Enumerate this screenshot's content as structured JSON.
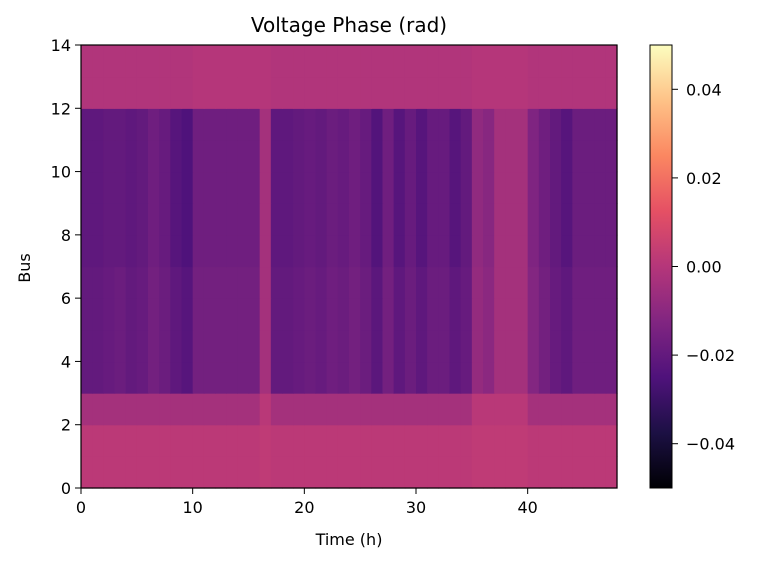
{
  "chart_data": {
    "type": "heatmap",
    "title": "Voltage Phase (rad)",
    "xlabel": "Time (h)",
    "ylabel": "Bus",
    "xlim": [
      0,
      48
    ],
    "ylim": [
      0,
      14
    ],
    "x_ticks": [
      "0",
      "10",
      "20",
      "30",
      "40"
    ],
    "y_ticks": [
      "0",
      "2",
      "4",
      "6",
      "8",
      "10",
      "12",
      "14"
    ],
    "colormap": "magma",
    "colorbar": {
      "vmin": -0.05,
      "vmax": 0.05,
      "ticks": [
        "−0.04",
        "−0.02",
        "0.00",
        "0.02",
        "0.04"
      ]
    },
    "buses": [
      0,
      1,
      2,
      3,
      4,
      5,
      6,
      7,
      8,
      9,
      10,
      11,
      12,
      13
    ],
    "hours": [
      0,
      1,
      2,
      3,
      4,
      5,
      6,
      7,
      8,
      9,
      10,
      11,
      12,
      13,
      14,
      15,
      16,
      17,
      18,
      19,
      20,
      21,
      22,
      23,
      24,
      25,
      26,
      27,
      28,
      29,
      30,
      31,
      32,
      33,
      34,
      35,
      36,
      37,
      38,
      39,
      40,
      41,
      42,
      43,
      44,
      45,
      46,
      47
    ],
    "values": [
      [
        0.0015,
        0.0015,
        0.0015,
        0.0015,
        0.0015,
        0.0015,
        0.0015,
        0.0015,
        0.0015,
        0.0015,
        0.0015,
        0.0015,
        0.0015,
        0.0015,
        0.0015,
        0.0015,
        0.0025,
        0.0015,
        0.0015,
        0.0015,
        0.0015,
        0.0015,
        0.0015,
        0.0015,
        0.0015,
        0.0015,
        0.0015,
        0.0015,
        0.0015,
        0.0015,
        0.0015,
        0.0015,
        0.0015,
        0.0015,
        0.0015,
        0.0025,
        0.0025,
        0.0025,
        0.0025,
        0.0025,
        0.0015,
        0.0015,
        0.0015,
        0.0015,
        0.0015,
        0.0015,
        0.0015,
        0.0015
      ],
      [
        0.0015,
        0.0015,
        0.0015,
        0.0015,
        0.0015,
        0.0015,
        0.0015,
        0.0015,
        0.0015,
        0.0015,
        0.0015,
        0.0015,
        0.0015,
        0.0015,
        0.0015,
        0.0015,
        0.0025,
        0.0015,
        0.0015,
        0.0015,
        0.0015,
        0.0015,
        0.0015,
        0.0015,
        0.0015,
        0.0015,
        0.0015,
        0.0015,
        0.0015,
        0.0015,
        0.0015,
        0.0015,
        0.0015,
        0.0015,
        0.0015,
        0.0025,
        0.0025,
        0.0025,
        0.0025,
        0.0025,
        0.0015,
        0.0015,
        0.0015,
        0.0015,
        0.0015,
        0.0015,
        0.0015,
        0.0015
      ],
      [
        -0.004,
        -0.004,
        -0.004,
        -0.004,
        -0.004,
        -0.004,
        -0.004,
        -0.004,
        -0.004,
        -0.004,
        -0.004,
        -0.004,
        -0.004,
        -0.004,
        -0.004,
        -0.004,
        0.001,
        -0.004,
        -0.004,
        -0.004,
        -0.004,
        -0.004,
        -0.004,
        -0.004,
        -0.004,
        -0.004,
        -0.004,
        -0.004,
        -0.004,
        -0.004,
        -0.004,
        -0.004,
        -0.004,
        -0.004,
        -0.004,
        0.001,
        0.001,
        0.001,
        0.001,
        0.001,
        -0.004,
        -0.004,
        -0.004,
        -0.004,
        -0.004,
        -0.004,
        -0.004,
        -0.004
      ],
      [
        -0.02,
        -0.02,
        -0.019,
        -0.018,
        -0.02,
        -0.019,
        -0.016,
        -0.018,
        -0.021,
        -0.023,
        -0.016,
        -0.016,
        -0.016,
        -0.016,
        -0.016,
        -0.016,
        -0.004,
        -0.02,
        -0.02,
        -0.019,
        -0.018,
        -0.019,
        -0.017,
        -0.018,
        -0.016,
        -0.018,
        -0.022,
        -0.016,
        -0.021,
        -0.018,
        -0.021,
        -0.018,
        -0.018,
        -0.021,
        -0.019,
        -0.008,
        -0.01,
        -0.004,
        -0.004,
        -0.004,
        -0.012,
        -0.016,
        -0.019,
        -0.021,
        -0.017,
        -0.017,
        -0.017,
        -0.017
      ],
      [
        -0.02,
        -0.02,
        -0.019,
        -0.018,
        -0.02,
        -0.019,
        -0.016,
        -0.018,
        -0.021,
        -0.023,
        -0.016,
        -0.016,
        -0.016,
        -0.016,
        -0.016,
        -0.016,
        -0.004,
        -0.02,
        -0.02,
        -0.019,
        -0.018,
        -0.019,
        -0.017,
        -0.018,
        -0.016,
        -0.018,
        -0.022,
        -0.016,
        -0.021,
        -0.018,
        -0.021,
        -0.018,
        -0.018,
        -0.021,
        -0.019,
        -0.008,
        -0.01,
        -0.004,
        -0.004,
        -0.004,
        -0.012,
        -0.016,
        -0.019,
        -0.021,
        -0.017,
        -0.017,
        -0.017,
        -0.017
      ],
      [
        -0.02,
        -0.02,
        -0.019,
        -0.018,
        -0.02,
        -0.019,
        -0.016,
        -0.018,
        -0.021,
        -0.023,
        -0.016,
        -0.016,
        -0.016,
        -0.016,
        -0.016,
        -0.016,
        -0.004,
        -0.02,
        -0.02,
        -0.019,
        -0.018,
        -0.019,
        -0.017,
        -0.018,
        -0.016,
        -0.018,
        -0.022,
        -0.016,
        -0.021,
        -0.018,
        -0.021,
        -0.018,
        -0.018,
        -0.021,
        -0.019,
        -0.008,
        -0.01,
        -0.004,
        -0.004,
        -0.004,
        -0.012,
        -0.016,
        -0.019,
        -0.021,
        -0.017,
        -0.017,
        -0.017,
        -0.017
      ],
      [
        -0.02,
        -0.02,
        -0.019,
        -0.018,
        -0.02,
        -0.019,
        -0.016,
        -0.018,
        -0.021,
        -0.023,
        -0.016,
        -0.016,
        -0.016,
        -0.016,
        -0.016,
        -0.016,
        -0.004,
        -0.02,
        -0.02,
        -0.019,
        -0.018,
        -0.019,
        -0.017,
        -0.018,
        -0.016,
        -0.018,
        -0.022,
        -0.016,
        -0.021,
        -0.018,
        -0.021,
        -0.018,
        -0.018,
        -0.021,
        -0.019,
        -0.008,
        -0.01,
        -0.004,
        -0.004,
        -0.004,
        -0.012,
        -0.016,
        -0.019,
        -0.021,
        -0.017,
        -0.017,
        -0.017,
        -0.017
      ],
      [
        -0.021,
        -0.021,
        -0.02,
        -0.02,
        -0.021,
        -0.02,
        -0.017,
        -0.019,
        -0.023,
        -0.025,
        -0.017,
        -0.017,
        -0.017,
        -0.017,
        -0.017,
        -0.017,
        -0.004,
        -0.021,
        -0.021,
        -0.02,
        -0.019,
        -0.02,
        -0.018,
        -0.019,
        -0.017,
        -0.019,
        -0.024,
        -0.017,
        -0.023,
        -0.019,
        -0.023,
        -0.019,
        -0.019,
        -0.023,
        -0.02,
        -0.009,
        -0.011,
        -0.004,
        -0.004,
        -0.004,
        -0.013,
        -0.017,
        -0.02,
        -0.023,
        -0.018,
        -0.018,
        -0.018,
        -0.018
      ],
      [
        -0.021,
        -0.021,
        -0.02,
        -0.02,
        -0.021,
        -0.02,
        -0.017,
        -0.019,
        -0.023,
        -0.025,
        -0.017,
        -0.017,
        -0.017,
        -0.017,
        -0.017,
        -0.017,
        -0.004,
        -0.021,
        -0.021,
        -0.02,
        -0.019,
        -0.02,
        -0.018,
        -0.019,
        -0.017,
        -0.019,
        -0.024,
        -0.017,
        -0.023,
        -0.019,
        -0.023,
        -0.019,
        -0.019,
        -0.023,
        -0.02,
        -0.009,
        -0.011,
        -0.004,
        -0.004,
        -0.004,
        -0.013,
        -0.017,
        -0.02,
        -0.023,
        -0.018,
        -0.018,
        -0.018,
        -0.018
      ],
      [
        -0.021,
        -0.021,
        -0.02,
        -0.02,
        -0.021,
        -0.02,
        -0.017,
        -0.019,
        -0.023,
        -0.025,
        -0.017,
        -0.017,
        -0.017,
        -0.017,
        -0.017,
        -0.017,
        -0.004,
        -0.021,
        -0.021,
        -0.02,
        -0.019,
        -0.02,
        -0.018,
        -0.019,
        -0.017,
        -0.019,
        -0.024,
        -0.017,
        -0.023,
        -0.019,
        -0.023,
        -0.019,
        -0.019,
        -0.023,
        -0.02,
        -0.009,
        -0.011,
        -0.004,
        -0.004,
        -0.004,
        -0.013,
        -0.017,
        -0.02,
        -0.023,
        -0.018,
        -0.018,
        -0.018,
        -0.018
      ],
      [
        -0.021,
        -0.021,
        -0.02,
        -0.02,
        -0.021,
        -0.02,
        -0.017,
        -0.019,
        -0.023,
        -0.025,
        -0.017,
        -0.017,
        -0.017,
        -0.017,
        -0.017,
        -0.017,
        -0.004,
        -0.021,
        -0.021,
        -0.02,
        -0.019,
        -0.02,
        -0.018,
        -0.019,
        -0.017,
        -0.019,
        -0.024,
        -0.017,
        -0.023,
        -0.019,
        -0.023,
        -0.019,
        -0.019,
        -0.023,
        -0.02,
        -0.009,
        -0.011,
        -0.004,
        -0.004,
        -0.004,
        -0.013,
        -0.017,
        -0.02,
        -0.023,
        -0.018,
        -0.018,
        -0.018,
        -0.018
      ],
      [
        -0.021,
        -0.021,
        -0.02,
        -0.02,
        -0.021,
        -0.02,
        -0.017,
        -0.019,
        -0.023,
        -0.025,
        -0.017,
        -0.017,
        -0.017,
        -0.017,
        -0.017,
        -0.017,
        -0.004,
        -0.021,
        -0.021,
        -0.02,
        -0.019,
        -0.02,
        -0.018,
        -0.019,
        -0.017,
        -0.019,
        -0.024,
        -0.017,
        -0.023,
        -0.019,
        -0.023,
        -0.019,
        -0.019,
        -0.023,
        -0.02,
        -0.009,
        -0.011,
        -0.004,
        -0.004,
        -0.004,
        -0.013,
        -0.017,
        -0.02,
        -0.023,
        -0.018,
        -0.018,
        -0.018,
        -0.018
      ],
      [
        -0.001,
        -0.001,
        -0.001,
        -0.001,
        -0.001,
        -0.001,
        -0.001,
        -0.001,
        -0.001,
        -0.001,
        0.0,
        0.0,
        0.0,
        0.0,
        0.0,
        0.0,
        0.0,
        -0.001,
        -0.001,
        -0.001,
        -0.001,
        -0.001,
        -0.001,
        -0.001,
        -0.001,
        -0.001,
        -0.001,
        -0.001,
        -0.001,
        -0.001,
        -0.001,
        -0.001,
        -0.001,
        -0.001,
        -0.001,
        0.0,
        0.0,
        0.0,
        0.0,
        0.0,
        -0.001,
        -0.001,
        -0.001,
        -0.001,
        -0.001,
        -0.001,
        -0.001,
        -0.001
      ],
      [
        -0.001,
        -0.001,
        -0.001,
        -0.001,
        -0.001,
        -0.001,
        -0.001,
        -0.001,
        -0.001,
        -0.001,
        0.0,
        0.0,
        0.0,
        0.0,
        0.0,
        0.0,
        0.0,
        -0.001,
        -0.001,
        -0.001,
        -0.001,
        -0.001,
        -0.001,
        -0.001,
        -0.001,
        -0.001,
        -0.001,
        -0.001,
        -0.001,
        -0.001,
        -0.001,
        -0.001,
        -0.001,
        -0.001,
        -0.001,
        0.0,
        0.0,
        0.0,
        0.0,
        0.0,
        -0.001,
        -0.001,
        -0.001,
        -0.001,
        -0.001,
        -0.001,
        -0.001,
        -0.001
      ]
    ]
  }
}
